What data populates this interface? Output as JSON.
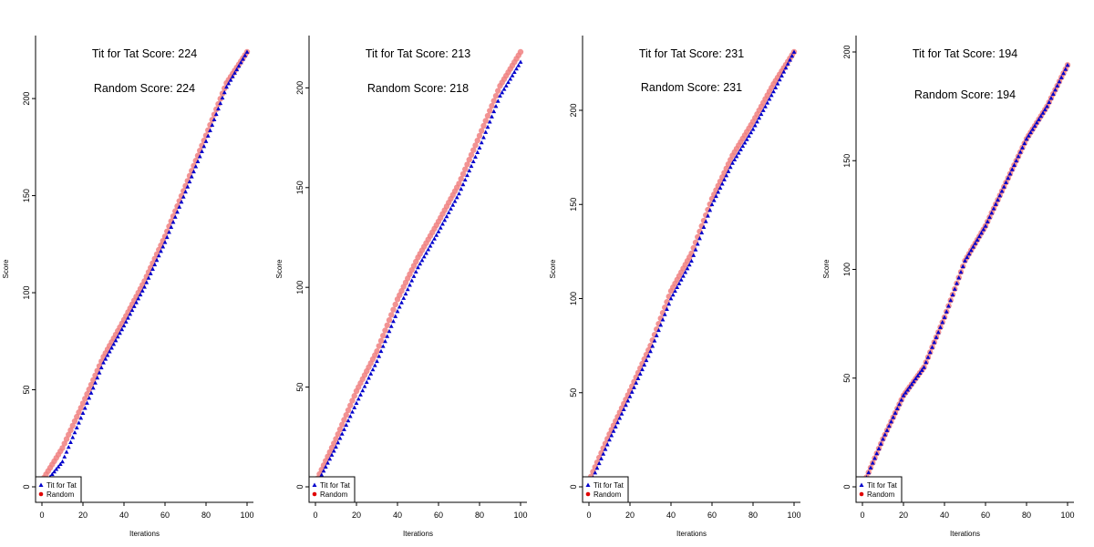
{
  "chart_data": [
    {
      "type": "scatter",
      "xlabel": "Iterations",
      "ylabel": "Score",
      "xlim": [
        0,
        100
      ],
      "ylim": [
        0,
        224
      ],
      "x_ticks": [
        0,
        20,
        40,
        60,
        80,
        100
      ],
      "y_ticks": [
        0,
        50,
        100,
        150,
        200
      ],
      "annotations": [
        "Tit for Tat  Score: 224",
        "Random  Score: 224"
      ],
      "legend": {
        "position": "bottom-left",
        "entries": [
          "Tit for Tat",
          "Random"
        ]
      },
      "series": [
        {
          "name": "Tit for Tat",
          "color": "#0000cc",
          "marker": "triangle",
          "x": [
            0,
            10,
            20,
            30,
            40,
            50,
            60,
            70,
            80,
            90,
            100
          ],
          "y": [
            0,
            13,
            38,
            64,
            83,
            103,
            126,
            152,
            178,
            206,
            224
          ]
        },
        {
          "name": "Random",
          "color": "#f08080",
          "marker": "circle",
          "x": [
            0,
            10,
            20,
            30,
            40,
            50,
            60,
            70,
            80,
            90,
            100
          ],
          "y": [
            3,
            20,
            43,
            67,
            86,
            106,
            129,
            155,
            181,
            208,
            224
          ]
        }
      ]
    },
    {
      "type": "scatter",
      "xlabel": "Iterations",
      "ylabel": "Score",
      "xlim": [
        0,
        100
      ],
      "ylim": [
        0,
        218
      ],
      "x_ticks": [
        0,
        20,
        40,
        60,
        80,
        100
      ],
      "y_ticks": [
        0,
        50,
        100,
        150,
        200
      ],
      "annotations": [
        "Tit for Tat  Score: 213",
        "Random  Score: 218"
      ],
      "legend": {
        "position": "bottom-left",
        "entries": [
          "Tit for Tat",
          "Random"
        ]
      },
      "series": [
        {
          "name": "Tit for Tat",
          "color": "#0000cc",
          "marker": "triangle",
          "x": [
            0,
            10,
            20,
            30,
            40,
            50,
            60,
            70,
            80,
            90,
            100
          ],
          "y": [
            0,
            20,
            42,
            63,
            88,
            110,
            128,
            147,
            170,
            196,
            213
          ]
        },
        {
          "name": "Random",
          "color": "#f08080",
          "marker": "circle",
          "x": [
            0,
            10,
            20,
            30,
            40,
            50,
            60,
            70,
            80,
            90,
            100
          ],
          "y": [
            2,
            24,
            48,
            68,
            94,
            115,
            133,
            152,
            176,
            201,
            218
          ]
        }
      ]
    },
    {
      "type": "scatter",
      "xlabel": "Iterations",
      "ylabel": "Score",
      "xlim": [
        0,
        100
      ],
      "ylim": [
        0,
        231
      ],
      "x_ticks": [
        0,
        20,
        40,
        60,
        80,
        100
      ],
      "y_ticks": [
        0,
        50,
        100,
        150,
        200
      ],
      "annotations": [
        "Tit for Tat  Score: 231",
        "Random  Score: 231"
      ],
      "legend": {
        "position": "bottom-left",
        "entries": [
          "Tit for Tat",
          "Random"
        ]
      },
      "series": [
        {
          "name": "Tit for Tat",
          "color": "#0000cc",
          "marker": "triangle",
          "x": [
            0,
            10,
            20,
            30,
            40,
            50,
            60,
            70,
            80,
            90,
            100
          ],
          "y": [
            0,
            25,
            48,
            72,
            100,
            120,
            150,
            172,
            190,
            210,
            231
          ]
        },
        {
          "name": "Random",
          "color": "#f08080",
          "marker": "circle",
          "x": [
            0,
            10,
            20,
            30,
            40,
            50,
            60,
            70,
            80,
            90,
            100
          ],
          "y": [
            3,
            28,
            51,
            75,
            104,
            124,
            153,
            176,
            194,
            214,
            231
          ]
        }
      ]
    },
    {
      "type": "scatter",
      "xlabel": "Iterations",
      "ylabel": "Score",
      "xlim": [
        0,
        100
      ],
      "ylim": [
        0,
        200
      ],
      "x_ticks": [
        0,
        20,
        40,
        60,
        80,
        100
      ],
      "y_ticks": [
        0,
        50,
        100,
        150,
        200
      ],
      "annotations": [
        "Tit for Tat  Score: 194",
        "Random  Score: 194"
      ],
      "legend": {
        "position": "bottom-left",
        "entries": [
          "Tit for Tat",
          "Random"
        ]
      },
      "series": [
        {
          "name": "Tit for Tat",
          "color": "#0000cc",
          "marker": "triangle",
          "x": [
            0,
            10,
            20,
            30,
            40,
            50,
            60,
            70,
            80,
            90,
            100
          ],
          "y": [
            0,
            22,
            42,
            55,
            78,
            104,
            120,
            140,
            160,
            175,
            194
          ]
        },
        {
          "name": "Random",
          "color": "#f08080",
          "marker": "circle",
          "x": [
            0,
            10,
            20,
            30,
            40,
            50,
            60,
            70,
            80,
            90,
            100
          ],
          "y": [
            0,
            22,
            42,
            55,
            78,
            104,
            120,
            140,
            160,
            175,
            194
          ]
        }
      ]
    }
  ]
}
